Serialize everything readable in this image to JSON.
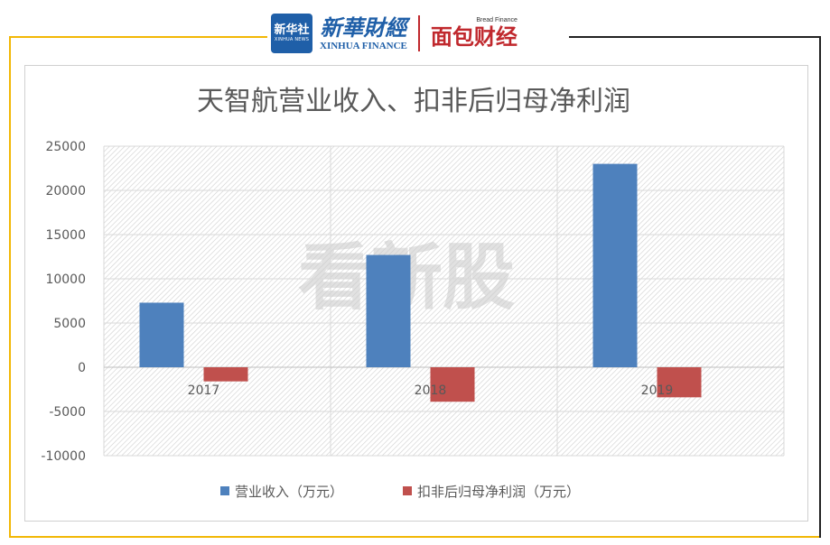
{
  "header": {
    "xinhua_badge_cn": "新华社",
    "xinhua_badge_en": "XINHUA NEWS",
    "xinhua_finance_cn": "新華財經",
    "xinhua_finance_en": "XINHUA FINANCE",
    "bread_finance_en": "Bread Finance",
    "bread_finance_cn": "面包财经"
  },
  "watermark": "看新股",
  "colors": {
    "frame_gold": "#f2b705",
    "frame_dark": "#222222",
    "revenue": "#4e81bd",
    "profit": "#c0504d"
  },
  "chart_data": {
    "type": "bar",
    "title": "天智航营业收入、扣非后归母净利润",
    "categories": [
      "2017",
      "2018",
      "2019"
    ],
    "series": [
      {
        "name": "营业收入（万元）",
        "values": [
          7300,
          12700,
          23000
        ]
      },
      {
        "name": "扣非后归母净利润（万元）",
        "values": [
          -1600,
          -3900,
          -3400
        ]
      }
    ],
    "ylim": [
      -10000,
      25000
    ],
    "yticks": [
      "25000",
      "20000",
      "15000",
      "10000",
      "5000",
      "0",
      "-5000",
      "-10000"
    ],
    "ytick_values": [
      25000,
      20000,
      15000,
      10000,
      5000,
      0,
      -5000,
      -10000
    ],
    "grid": true,
    "legend": "bottom"
  }
}
